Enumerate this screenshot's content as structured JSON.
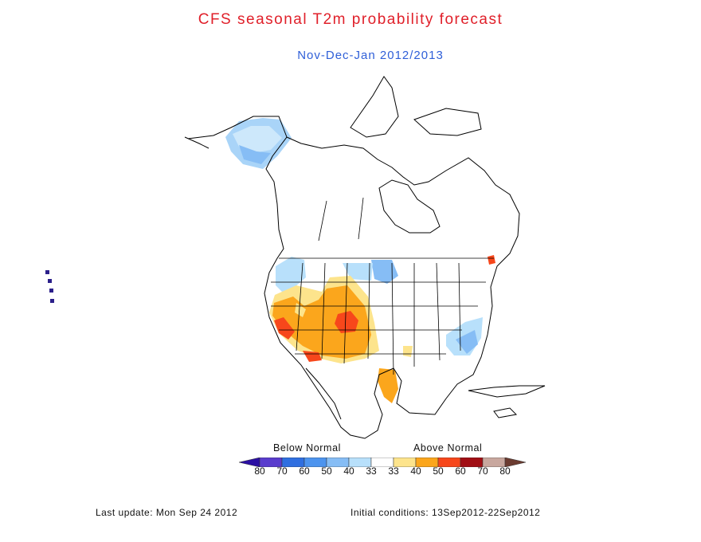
{
  "title": "CFS seasonal T2m probability forecast",
  "subtitle": "Nov-Dec-Jan 2012/2013",
  "legend": {
    "below_label": "Below Normal",
    "above_label": "Above Normal",
    "colors": [
      "#2b0fa3",
      "#5a3ccd",
      "#2f6fe0",
      "#4d94ee",
      "#86bdf5",
      "#b8e0fb",
      "#ffffff",
      "#fde48c",
      "#fba61c",
      "#f7471b",
      "#a10e14",
      "#c8a79e",
      "#6b3b30"
    ],
    "ticks": [
      "80",
      "70",
      "60",
      "50",
      "40",
      "33",
      "33",
      "40",
      "50",
      "60",
      "70",
      "80"
    ]
  },
  "footer": {
    "last_update": "Last update: Mon Sep 24 2012",
    "initial_conditions": "Initial conditions: 13Sep2012-22Sep2012"
  },
  "regions": [
    {
      "id": "alaska",
      "category": "below-40"
    },
    {
      "id": "pacific-northwest",
      "category": "below-40"
    },
    {
      "id": "southwest-us",
      "category": "above-50"
    },
    {
      "id": "colorado-core",
      "category": "above-60"
    },
    {
      "id": "south-texas",
      "category": "above-50"
    },
    {
      "id": "southeast-coast",
      "category": "below-40"
    },
    {
      "id": "north-dakota",
      "category": "below-40"
    }
  ]
}
